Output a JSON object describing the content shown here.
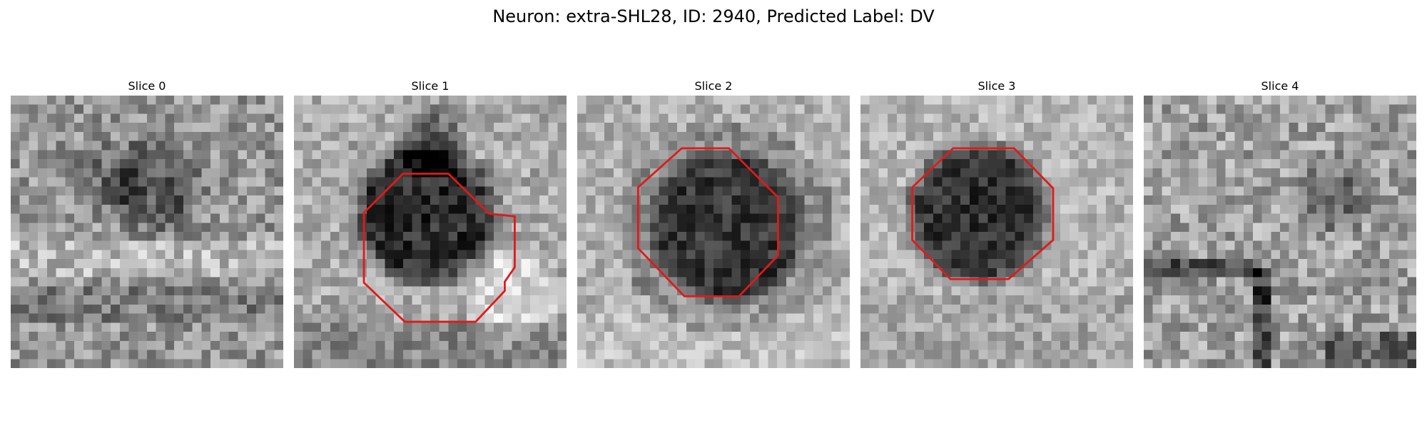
{
  "figure": {
    "title": "Neuron: extra-SHL28, ID: 2940, Predicted Label: DV"
  },
  "slices": [
    {
      "title": "Slice 0",
      "has_contour": false
    },
    {
      "title": "Slice 1",
      "has_contour": true
    },
    {
      "title": "Slice 2",
      "has_contour": true
    },
    {
      "title": "Slice 3",
      "has_contour": true
    },
    {
      "title": "Slice 4",
      "has_contour": false
    }
  ],
  "colors": {
    "contour": "#e01a1a",
    "background": "#ffffff"
  }
}
